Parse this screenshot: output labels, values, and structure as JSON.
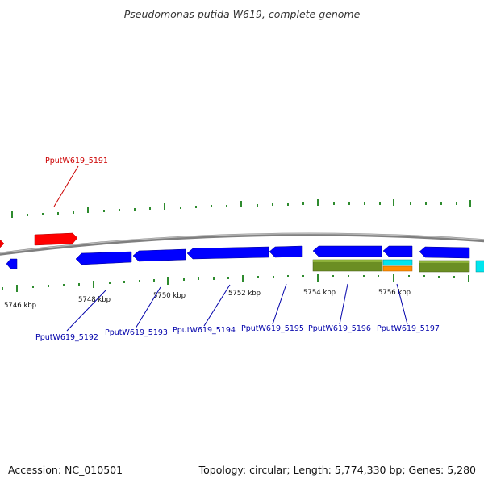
{
  "title": "Pseudomonas putida W619, complete genome",
  "footer": {
    "accession": "Accession: NC_010501",
    "info": "Topology: circular; Length: 5,774,330 bp; Genes: 5,280"
  },
  "colors": {
    "backbone": "#8a8a8a",
    "forward_gene": "#ff0000",
    "reverse_gene": "#0000ff",
    "cds_feature": "#6b8e23",
    "misc_feature_cyan": "#00e5ee",
    "misc_feature_orange": "#ff8c00",
    "tick": "#2e8b2e",
    "label_forward": "#cc0000",
    "label_reverse": "#0000aa"
  },
  "scale_labels": [
    {
      "text": "5746 kbp"
    },
    {
      "text": "5748 kbp"
    },
    {
      "text": "5750 kbp"
    },
    {
      "text": "5752 kbp"
    },
    {
      "text": "5754 kbp"
    },
    {
      "text": "5756 kbp"
    }
  ],
  "gene_labels": [
    {
      "text": "PputW619_5191",
      "strand": "forward"
    },
    {
      "text": "PputW619_5192",
      "strand": "reverse"
    },
    {
      "text": "PputW619_5193",
      "strand": "reverse"
    },
    {
      "text": "PputW619_5194",
      "strand": "reverse"
    },
    {
      "text": "PputW619_5195",
      "strand": "reverse"
    },
    {
      "text": "PputW619_5196",
      "strand": "reverse"
    },
    {
      "text": "PputW619_5197",
      "strand": "reverse"
    }
  ]
}
